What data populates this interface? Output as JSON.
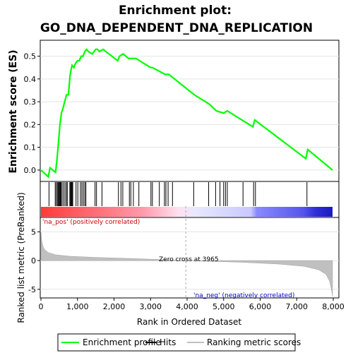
{
  "title_line1": "Enrichment plot:",
  "title_line2": "GO_DNA_DEPENDENT_DNA_REPLICATION",
  "colors": {
    "enrichment": "#00ff00",
    "hits": "#000000",
    "metric_fill": "#c0c0c0",
    "pos_label": "#cc0000",
    "neg_label": "#0000cc",
    "zero_dash": "#aaaaaa"
  },
  "chart_data": {
    "type": "line",
    "top_panel": {
      "ylabel": "Enrichment score (ES)",
      "yticks": [
        "0.0",
        "0.1",
        "0.2",
        "0.3",
        "0.4",
        "0.5"
      ],
      "ylim": [
        -0.05,
        0.57
      ],
      "series": [
        {
          "name": "Enrichment profile",
          "x": [
            0,
            200,
            250,
            400,
            440,
            480,
            520,
            560,
            600,
            650,
            700,
            750,
            800,
            850,
            900,
            950,
            1000,
            1050,
            1100,
            1150,
            1200,
            1250,
            1300,
            1400,
            1500,
            1550,
            1600,
            1700,
            2100,
            2150,
            2250,
            2400,
            2500,
            2600,
            2700,
            3000,
            3050,
            3400,
            3500,
            4200,
            4600,
            4800,
            5000,
            5100,
            5500,
            5800,
            5850,
            7250,
            7300,
            7980
          ],
          "y": [
            0.0,
            -0.03,
            0.01,
            -0.01,
            0.05,
            0.12,
            0.2,
            0.25,
            0.27,
            0.3,
            0.33,
            0.33,
            0.42,
            0.46,
            0.45,
            0.47,
            0.48,
            0.48,
            0.5,
            0.5,
            0.52,
            0.53,
            0.52,
            0.51,
            0.53,
            0.53,
            0.52,
            0.53,
            0.48,
            0.5,
            0.51,
            0.49,
            0.49,
            0.49,
            0.48,
            0.45,
            0.45,
            0.42,
            0.42,
            0.33,
            0.29,
            0.26,
            0.25,
            0.26,
            0.22,
            0.19,
            0.22,
            0.05,
            0.09,
            0.0
          ]
        }
      ]
    },
    "hits": [
      220,
      390,
      420,
      450,
      470,
      490,
      510,
      530,
      550,
      580,
      620,
      660,
      700,
      720,
      790,
      810,
      830,
      850,
      870,
      960,
      1010,
      1080,
      1120,
      1160,
      1200,
      1230,
      1480,
      1520,
      1670,
      2120,
      2190,
      2240,
      2420,
      2460,
      2530,
      2680,
      3010,
      3050,
      3240,
      3380,
      3420,
      3480,
      3600,
      4180,
      4590,
      4780,
      4900,
      5000,
      5050,
      5100,
      5530,
      5820,
      5870,
      7280
    ],
    "bottom_panel": {
      "ylabel": "Ranked list metric (PreRanked)",
      "yticks": [
        "5",
        "0",
        "-5"
      ],
      "ylim": [
        -6.5,
        7.5
      ],
      "metric_x": [
        0,
        20,
        60,
        100,
        200,
        400,
        800,
        1500,
        2500,
        3500,
        3965,
        4500,
        5500,
        6500,
        7200,
        7600,
        7800,
        7900,
        7950,
        7980
      ],
      "metric_y": [
        5.0,
        3.5,
        2.4,
        1.9,
        1.4,
        1.0,
        0.75,
        0.55,
        0.35,
        0.12,
        0.0,
        -0.1,
        -0.3,
        -0.6,
        -1.0,
        -1.6,
        -2.4,
        -3.6,
        -5.0,
        -6.2
      ]
    },
    "xlabel": "Rank in Ordered Dataset",
    "xticks": [
      "0",
      "1,000",
      "2,000",
      "3,000",
      "4,000",
      "5,000",
      "6,000",
      "7,000",
      "8,000"
    ],
    "xlim": [
      0,
      8000
    ],
    "zero_cross": 3965,
    "annotations": {
      "pos": "'na_pos' (positively correlated)",
      "neg": "'na_neg' (negatively correlated)",
      "zero": "Zero cross at 3965"
    },
    "legend": [
      "Enrichment profile",
      "Hits",
      "Ranking metric scores"
    ]
  }
}
